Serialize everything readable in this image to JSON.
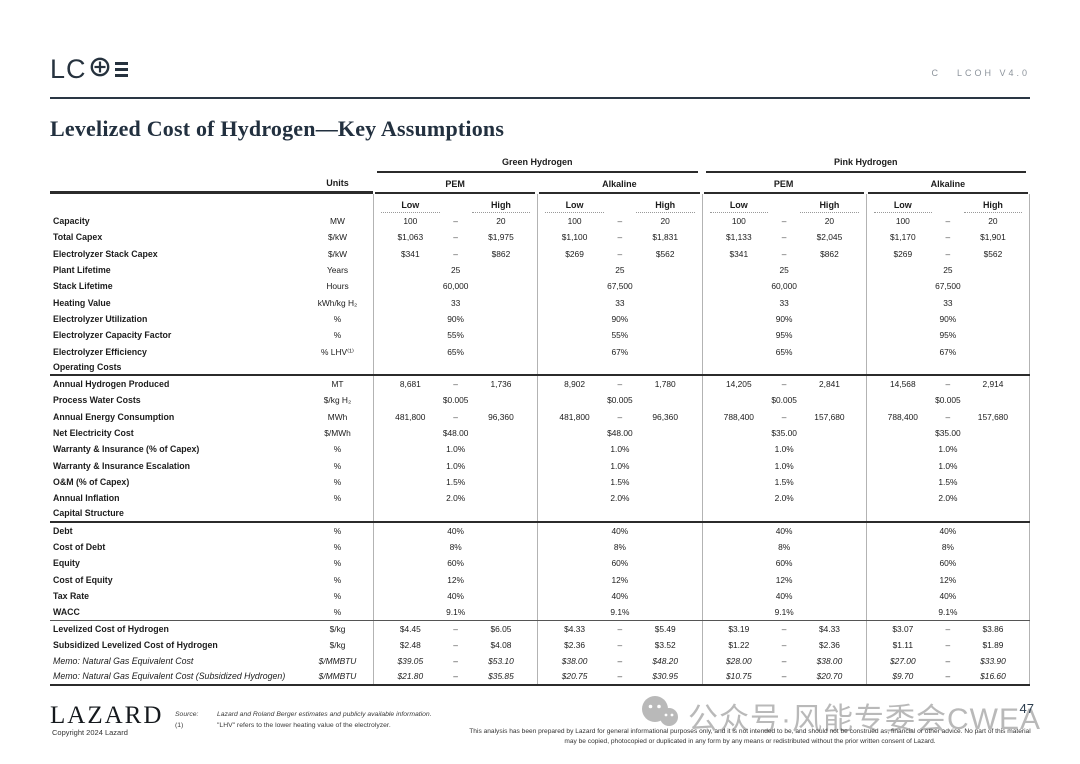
{
  "header": {
    "logo_text": "LCOE",
    "doc_section": "C",
    "doc_version": "LCOH V4.0"
  },
  "title": "Levelized Cost of Hydrogen—Key Assumptions",
  "table": {
    "units_header": "Units",
    "dash": "–",
    "groups": [
      {
        "label": "Green Hydrogen",
        "subgroups": [
          "PEM",
          "Alkaline"
        ]
      },
      {
        "label": "Pink Hydrogen",
        "subgroups": [
          "PEM",
          "Alkaline"
        ]
      }
    ],
    "range_labels": {
      "low": "Low",
      "high": "High"
    },
    "rows": [
      {
        "label": "Capacity",
        "units": "MW",
        "values": [
          [
            "100",
            "20"
          ],
          [
            "100",
            "20"
          ],
          [
            "100",
            "20"
          ],
          [
            "100",
            "20"
          ]
        ]
      },
      {
        "label": "Total Capex",
        "units": "$/kW",
        "values": [
          [
            "$1,063",
            "$1,975"
          ],
          [
            "$1,100",
            "$1,831"
          ],
          [
            "$1,133",
            "$2,045"
          ],
          [
            "$1,170",
            "$1,901"
          ]
        ]
      },
      {
        "label": "Electrolyzer Stack Capex",
        "units": "$/kW",
        "values": [
          [
            "$341",
            "$862"
          ],
          [
            "$269",
            "$562"
          ],
          [
            "$341",
            "$862"
          ],
          [
            "$269",
            "$562"
          ]
        ]
      },
      {
        "label": "Plant Lifetime",
        "units": "Years",
        "values": [
          "25",
          "25",
          "25",
          "25"
        ]
      },
      {
        "label": "Stack Lifetime",
        "units": "Hours",
        "values": [
          "60,000",
          "67,500",
          "60,000",
          "67,500"
        ]
      },
      {
        "label": "Heating Value",
        "units": "kWh/kg H₂",
        "values": [
          "33",
          "33",
          "33",
          "33"
        ]
      },
      {
        "label": "Electrolyzer Utilization",
        "units": "%",
        "values": [
          "90%",
          "90%",
          "90%",
          "90%"
        ]
      },
      {
        "label": "Electrolyzer Capacity Factor",
        "units": "%",
        "values": [
          "55%",
          "55%",
          "95%",
          "95%"
        ]
      },
      {
        "label": "Electrolyzer Efficiency",
        "units": "% LHV⁽¹⁾",
        "values": [
          "65%",
          "67%",
          "65%",
          "67%"
        ]
      },
      {
        "label": "Operating Costs",
        "section": true,
        "rule_below": true
      },
      {
        "label": "Annual Hydrogen Produced",
        "units": "MT",
        "values": [
          [
            "8,681",
            "1,736"
          ],
          [
            "8,902",
            "1,780"
          ],
          [
            "14,205",
            "2,841"
          ],
          [
            "14,568",
            "2,914"
          ]
        ]
      },
      {
        "label": "Process Water Costs",
        "units": "$/kg H₂",
        "values": [
          "$0.005",
          "$0.005",
          "$0.005",
          "$0.005"
        ]
      },
      {
        "label": "Annual Energy Consumption",
        "units": "MWh",
        "values": [
          [
            "481,800",
            "96,360"
          ],
          [
            "481,800",
            "96,360"
          ],
          [
            "788,400",
            "157,680"
          ],
          [
            "788,400",
            "157,680"
          ]
        ]
      },
      {
        "label": "Net Electricity Cost",
        "units": "$/MWh",
        "values": [
          "$48.00",
          "$48.00",
          "$35.00",
          "$35.00"
        ]
      },
      {
        "label": "Warranty & Insurance (% of Capex)",
        "units": "%",
        "values": [
          "1.0%",
          "1.0%",
          "1.0%",
          "1.0%"
        ]
      },
      {
        "label": "Warranty & Insurance Escalation",
        "units": "%",
        "values": [
          "1.0%",
          "1.0%",
          "1.0%",
          "1.0%"
        ]
      },
      {
        "label": "O&M (% of Capex)",
        "units": "%",
        "values": [
          "1.5%",
          "1.5%",
          "1.5%",
          "1.5%"
        ]
      },
      {
        "label": "Annual Inflation",
        "units": "%",
        "values": [
          "2.0%",
          "2.0%",
          "2.0%",
          "2.0%"
        ]
      },
      {
        "label": "Capital Structure",
        "section": true,
        "rule_below": true
      },
      {
        "label": "Debt",
        "units": "%",
        "values": [
          "40%",
          "40%",
          "40%",
          "40%"
        ]
      },
      {
        "label": "Cost of Debt",
        "units": "%",
        "values": [
          "8%",
          "8%",
          "8%",
          "8%"
        ]
      },
      {
        "label": "Equity",
        "units": "%",
        "values": [
          "60%",
          "60%",
          "60%",
          "60%"
        ]
      },
      {
        "label": "Cost of Equity",
        "units": "%",
        "values": [
          "12%",
          "12%",
          "12%",
          "12%"
        ]
      },
      {
        "label": "Tax Rate",
        "units": "%",
        "values": [
          "40%",
          "40%",
          "40%",
          "40%"
        ]
      },
      {
        "label": "WACC",
        "units": "%",
        "values": [
          "9.1%",
          "9.1%",
          "9.1%",
          "9.1%"
        ]
      },
      {
        "label": "Levelized Cost of Hydrogen",
        "units": "$/kg",
        "rule_above": true,
        "values": [
          [
            "$4.45",
            "$6.05"
          ],
          [
            "$4.33",
            "$5.49"
          ],
          [
            "$3.19",
            "$4.33"
          ],
          [
            "$3.07",
            "$3.86"
          ]
        ]
      },
      {
        "label": "Subsidized Levelized Cost of Hydrogen",
        "units": "$/kg",
        "values": [
          [
            "$2.48",
            "$4.08"
          ],
          [
            "$2.36",
            "$3.52"
          ],
          [
            "$1.22",
            "$2.36"
          ],
          [
            "$1.11",
            "$1.89"
          ]
        ]
      },
      {
        "label": "Memo: Natural Gas Equivalent Cost",
        "units": "$/MMBTU",
        "italic": true,
        "values": [
          [
            "$39.05",
            "$53.10"
          ],
          [
            "$38.00",
            "$48.20"
          ],
          [
            "$28.00",
            "$38.00"
          ],
          [
            "$27.00",
            "$33.90"
          ]
        ]
      },
      {
        "label": "Memo: Natural Gas Equivalent Cost (Subsidized Hydrogen)",
        "units": "$/MMBTU",
        "italic": true,
        "rule_below": true,
        "values": [
          [
            "$21.80",
            "$35.85"
          ],
          [
            "$20.75",
            "$30.95"
          ],
          [
            "$10.75",
            "$20.70"
          ],
          [
            "$9.70",
            "$16.60"
          ]
        ]
      }
    ]
  },
  "footer": {
    "lazard_wordmark": "LAZARD",
    "copyright": "Copyright 2024 Lazard",
    "source_label": "Source:",
    "source_text": "Lazard and Roland Berger estimates and publicly available information.",
    "note_label": "(1)",
    "note_text": "\"LHV\" refers to the lower heating value of the electrolyzer.",
    "page_number": "47",
    "watermark_text": "公众号·风能专委会CWEA",
    "disclaimer": "This analysis has been prepared by Lazard for general informational purposes only, and it is not intended to be, and should not be construed as, financial or other advice. No part of this material may be copied, photocopied or duplicated in any form by any means or redistributed without the prior written consent of Lazard."
  }
}
